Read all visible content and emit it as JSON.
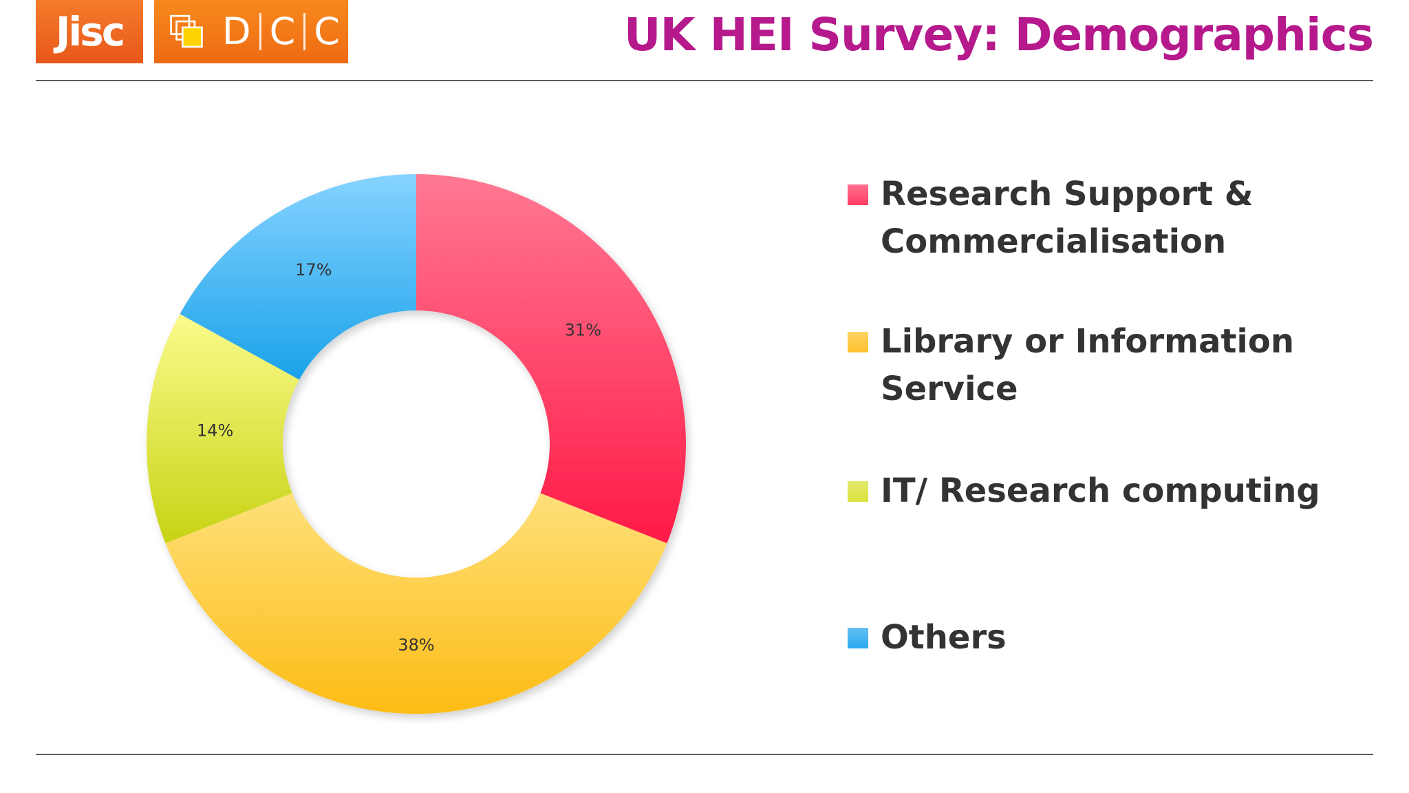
{
  "header": {
    "logo_jisc": "Jisc",
    "logo_dcc_letters": [
      "D",
      "C",
      "C"
    ],
    "title": "UK HEI Survey: Demographics"
  },
  "colors": {
    "title": "#b5198c",
    "jisc_orange": "#e8571a",
    "dcc_orange": "#f07a16",
    "legend_text": "#333333"
  },
  "chart_data": {
    "type": "pie",
    "donut": true,
    "title": "",
    "categories": [
      "Research Support & Commercialisation",
      "Library or Information Service",
      "IT/ Research computing",
      "Others"
    ],
    "values": [
      31,
      38,
      14,
      17
    ],
    "labels": [
      "31%",
      "38%",
      "14%",
      "17%"
    ],
    "unit": "%",
    "colors": [
      "#ff3d63",
      "#fdc22d",
      "#d9e23a",
      "#2aa8ee"
    ],
    "legend_position": "right"
  },
  "legend": {
    "items": [
      {
        "label": "Research Support & Commercialisation",
        "color": "#ff3d63"
      },
      {
        "label": "Library or Information Service",
        "color": "#fdc22d"
      },
      {
        "label": "IT/ Research computing",
        "color": "#d9e23a"
      },
      {
        "label": "Others",
        "color": "#2aa8ee"
      }
    ]
  }
}
